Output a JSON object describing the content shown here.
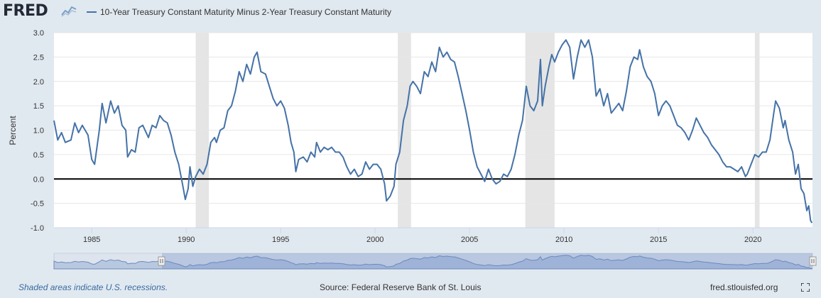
{
  "header": {
    "logo_text": "FRED",
    "legend_label": "10-Year Treasury Constant Maturity Minus 2-Year Treasury Constant Maturity"
  },
  "colors": {
    "series": "#4572a7",
    "recession": "#e5e5e5",
    "zero_line": "#000000",
    "grid": "#e6e6e6",
    "navigator_fill": "#b7c8e0"
  },
  "icons": {
    "logo_mark": "chart-line-icon",
    "fullscreen": "expand-icon"
  },
  "footer": {
    "note": "Shaded areas indicate U.S. recessions.",
    "source": "Source: Federal Reserve Bank of St. Louis",
    "url": "fred.stlouisfed.org"
  },
  "chart_data": {
    "type": "line",
    "title": "10-Year Treasury Constant Maturity Minus 2-Year Treasury Constant Maturity",
    "xlabel": "",
    "ylabel": "Percent",
    "ylim": [
      -1.0,
      3.0
    ],
    "xlim": [
      1983.0,
      2023.15
    ],
    "yticks": [
      "-1.0",
      "-0.5",
      "0.0",
      "0.5",
      "1.0",
      "1.5",
      "2.0",
      "2.5",
      "3.0"
    ],
    "xticks": [
      "1985",
      "1990",
      "1995",
      "2000",
      "2005",
      "2010",
      "2015",
      "2020"
    ],
    "recessions": [
      [
        1990.5,
        1991.2
      ],
      [
        2001.2,
        2001.9
      ],
      [
        2007.95,
        2009.5
      ],
      [
        2020.1,
        2020.35
      ]
    ],
    "series": [
      {
        "name": "10-Year Treasury Constant Maturity Minus 2-Year Treasury Constant Maturity",
        "points": [
          [
            1983.0,
            1.2
          ],
          [
            1983.2,
            0.8
          ],
          [
            1983.4,
            0.95
          ],
          [
            1983.6,
            0.75
          ],
          [
            1983.9,
            0.8
          ],
          [
            1984.1,
            1.15
          ],
          [
            1984.3,
            0.95
          ],
          [
            1984.5,
            1.1
          ],
          [
            1984.8,
            0.9
          ],
          [
            1985.0,
            0.4
          ],
          [
            1985.15,
            0.3
          ],
          [
            1985.4,
            1.0
          ],
          [
            1985.55,
            1.55
          ],
          [
            1985.75,
            1.15
          ],
          [
            1986.0,
            1.6
          ],
          [
            1986.2,
            1.35
          ],
          [
            1986.4,
            1.5
          ],
          [
            1986.6,
            1.1
          ],
          [
            1986.8,
            1.0
          ],
          [
            1986.9,
            0.45
          ],
          [
            1987.1,
            0.6
          ],
          [
            1987.3,
            0.55
          ],
          [
            1987.5,
            1.05
          ],
          [
            1987.7,
            1.1
          ],
          [
            1988.0,
            0.85
          ],
          [
            1988.2,
            1.1
          ],
          [
            1988.4,
            1.05
          ],
          [
            1988.6,
            1.3
          ],
          [
            1988.8,
            1.2
          ],
          [
            1989.0,
            1.15
          ],
          [
            1989.2,
            0.9
          ],
          [
            1989.4,
            0.55
          ],
          [
            1989.6,
            0.3
          ],
          [
            1989.8,
            -0.1
          ],
          [
            1989.95,
            -0.42
          ],
          [
            1990.1,
            -0.2
          ],
          [
            1990.2,
            0.25
          ],
          [
            1990.35,
            -0.15
          ],
          [
            1990.5,
            0.05
          ],
          [
            1990.7,
            0.2
          ],
          [
            1990.9,
            0.1
          ],
          [
            1991.1,
            0.3
          ],
          [
            1991.3,
            0.75
          ],
          [
            1991.5,
            0.85
          ],
          [
            1991.6,
            0.75
          ],
          [
            1991.8,
            1.0
          ],
          [
            1992.0,
            1.05
          ],
          [
            1992.2,
            1.4
          ],
          [
            1992.4,
            1.5
          ],
          [
            1992.6,
            1.8
          ],
          [
            1992.8,
            2.2
          ],
          [
            1993.0,
            2.0
          ],
          [
            1993.2,
            2.35
          ],
          [
            1993.4,
            2.15
          ],
          [
            1993.6,
            2.5
          ],
          [
            1993.75,
            2.6
          ],
          [
            1993.95,
            2.2
          ],
          [
            1994.2,
            2.15
          ],
          [
            1994.4,
            1.9
          ],
          [
            1994.6,
            1.65
          ],
          [
            1994.8,
            1.5
          ],
          [
            1995.0,
            1.6
          ],
          [
            1995.2,
            1.45
          ],
          [
            1995.4,
            1.1
          ],
          [
            1995.55,
            0.75
          ],
          [
            1995.7,
            0.55
          ],
          [
            1995.8,
            0.15
          ],
          [
            1995.95,
            0.4
          ],
          [
            1996.2,
            0.45
          ],
          [
            1996.4,
            0.35
          ],
          [
            1996.6,
            0.55
          ],
          [
            1996.8,
            0.45
          ],
          [
            1996.9,
            0.75
          ],
          [
            1997.1,
            0.55
          ],
          [
            1997.3,
            0.65
          ],
          [
            1997.5,
            0.6
          ],
          [
            1997.7,
            0.65
          ],
          [
            1997.9,
            0.55
          ],
          [
            1998.1,
            0.55
          ],
          [
            1998.3,
            0.45
          ],
          [
            1998.5,
            0.25
          ],
          [
            1998.7,
            0.1
          ],
          [
            1998.9,
            0.2
          ],
          [
            1999.1,
            0.05
          ],
          [
            1999.3,
            0.1
          ],
          [
            1999.5,
            0.35
          ],
          [
            1999.7,
            0.2
          ],
          [
            1999.9,
            0.3
          ],
          [
            2000.1,
            0.3
          ],
          [
            2000.3,
            0.2
          ],
          [
            2000.5,
            -0.1
          ],
          [
            2000.6,
            -0.45
          ],
          [
            2000.8,
            -0.35
          ],
          [
            2001.0,
            -0.15
          ],
          [
            2001.1,
            0.3
          ],
          [
            2001.3,
            0.55
          ],
          [
            2001.5,
            1.2
          ],
          [
            2001.7,
            1.5
          ],
          [
            2001.85,
            1.9
          ],
          [
            2002.0,
            2.0
          ],
          [
            2002.2,
            1.9
          ],
          [
            2002.4,
            1.75
          ],
          [
            2002.6,
            2.2
          ],
          [
            2002.8,
            2.1
          ],
          [
            2003.0,
            2.4
          ],
          [
            2003.2,
            2.2
          ],
          [
            2003.4,
            2.7
          ],
          [
            2003.6,
            2.5
          ],
          [
            2003.8,
            2.6
          ],
          [
            2004.0,
            2.45
          ],
          [
            2004.2,
            2.4
          ],
          [
            2004.4,
            2.1
          ],
          [
            2004.6,
            1.75
          ],
          [
            2004.8,
            1.4
          ],
          [
            2005.0,
            1.0
          ],
          [
            2005.2,
            0.55
          ],
          [
            2005.4,
            0.25
          ],
          [
            2005.6,
            0.1
          ],
          [
            2005.8,
            -0.05
          ],
          [
            2006.0,
            0.2
          ],
          [
            2006.2,
            0.0
          ],
          [
            2006.4,
            -0.1
          ],
          [
            2006.6,
            -0.05
          ],
          [
            2006.8,
            0.1
          ],
          [
            2007.0,
            0.05
          ],
          [
            2007.2,
            0.2
          ],
          [
            2007.4,
            0.5
          ],
          [
            2007.6,
            0.9
          ],
          [
            2007.8,
            1.2
          ],
          [
            2008.0,
            1.9
          ],
          [
            2008.2,
            1.5
          ],
          [
            2008.4,
            1.4
          ],
          [
            2008.6,
            1.6
          ],
          [
            2008.75,
            2.45
          ],
          [
            2008.85,
            1.5
          ],
          [
            2009.0,
            1.9
          ],
          [
            2009.2,
            2.3
          ],
          [
            2009.35,
            2.55
          ],
          [
            2009.5,
            2.4
          ],
          [
            2009.7,
            2.6
          ],
          [
            2009.9,
            2.75
          ],
          [
            2010.1,
            2.85
          ],
          [
            2010.3,
            2.7
          ],
          [
            2010.5,
            2.05
          ],
          [
            2010.7,
            2.5
          ],
          [
            2010.9,
            2.85
          ],
          [
            2011.1,
            2.7
          ],
          [
            2011.3,
            2.85
          ],
          [
            2011.5,
            2.5
          ],
          [
            2011.7,
            1.7
          ],
          [
            2011.9,
            1.85
          ],
          [
            2012.1,
            1.5
          ],
          [
            2012.3,
            1.75
          ],
          [
            2012.5,
            1.35
          ],
          [
            2012.7,
            1.45
          ],
          [
            2012.9,
            1.55
          ],
          [
            2013.1,
            1.4
          ],
          [
            2013.3,
            1.8
          ],
          [
            2013.5,
            2.3
          ],
          [
            2013.7,
            2.5
          ],
          [
            2013.9,
            2.45
          ],
          [
            2014.0,
            2.65
          ],
          [
            2014.2,
            2.3
          ],
          [
            2014.4,
            2.1
          ],
          [
            2014.6,
            2.0
          ],
          [
            2014.8,
            1.75
          ],
          [
            2015.0,
            1.3
          ],
          [
            2015.2,
            1.5
          ],
          [
            2015.4,
            1.6
          ],
          [
            2015.6,
            1.5
          ],
          [
            2015.8,
            1.3
          ],
          [
            2016.0,
            1.1
          ],
          [
            2016.2,
            1.05
          ],
          [
            2016.4,
            0.95
          ],
          [
            2016.6,
            0.8
          ],
          [
            2016.8,
            1.0
          ],
          [
            2017.0,
            1.25
          ],
          [
            2017.2,
            1.1
          ],
          [
            2017.4,
            0.95
          ],
          [
            2017.6,
            0.85
          ],
          [
            2017.8,
            0.7
          ],
          [
            2018.0,
            0.6
          ],
          [
            2018.2,
            0.5
          ],
          [
            2018.4,
            0.35
          ],
          [
            2018.6,
            0.25
          ],
          [
            2018.8,
            0.25
          ],
          [
            2019.0,
            0.2
          ],
          [
            2019.2,
            0.15
          ],
          [
            2019.4,
            0.25
          ],
          [
            2019.6,
            0.05
          ],
          [
            2019.7,
            0.1
          ],
          [
            2019.9,
            0.3
          ],
          [
            2020.1,
            0.5
          ],
          [
            2020.3,
            0.45
          ],
          [
            2020.5,
            0.55
          ],
          [
            2020.7,
            0.55
          ],
          [
            2020.9,
            0.8
          ],
          [
            2021.1,
            1.35
          ],
          [
            2021.2,
            1.6
          ],
          [
            2021.4,
            1.45
          ],
          [
            2021.6,
            1.05
          ],
          [
            2021.7,
            1.2
          ],
          [
            2021.9,
            0.8
          ],
          [
            2022.1,
            0.55
          ],
          [
            2022.25,
            0.1
          ],
          [
            2022.4,
            0.3
          ],
          [
            2022.55,
            -0.2
          ],
          [
            2022.7,
            -0.3
          ],
          [
            2022.85,
            -0.65
          ],
          [
            2022.95,
            -0.55
          ],
          [
            2023.05,
            -0.85
          ],
          [
            2023.12,
            -0.9
          ]
        ]
      }
    ]
  }
}
